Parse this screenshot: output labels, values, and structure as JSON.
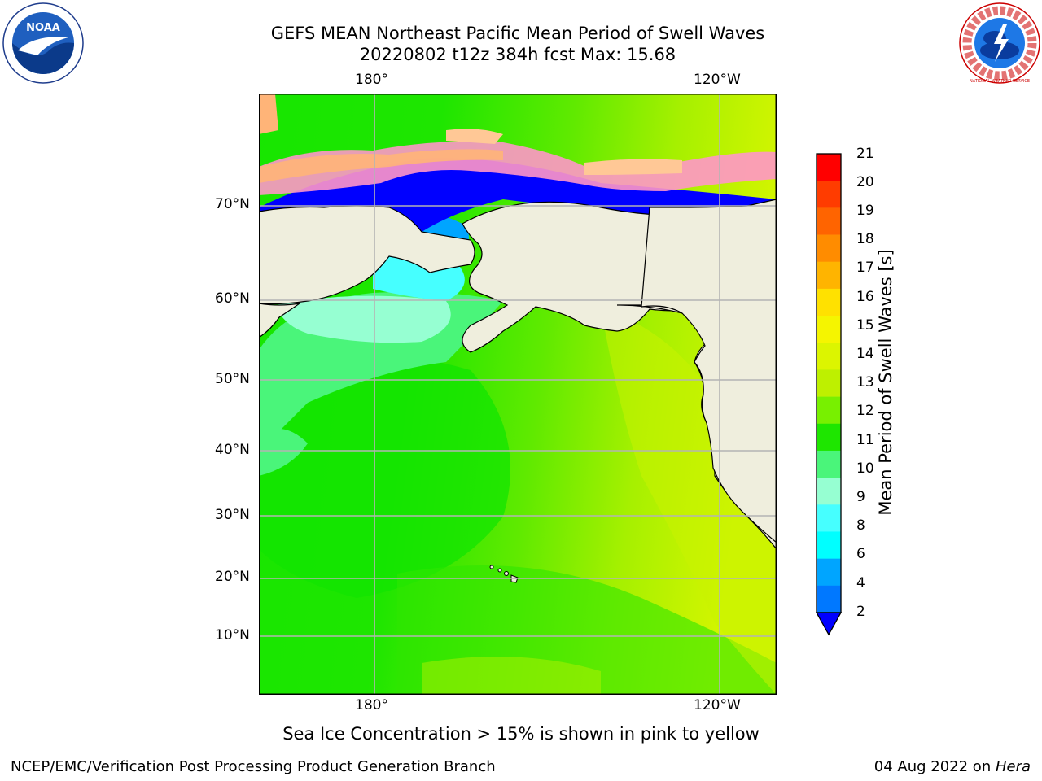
{
  "header": {
    "title_line1": "GEFS MEAN Northeast Pacific Mean Period of Swell Waves",
    "title_line2": "20220802 t12z 384h fcst   Max: 15.68"
  },
  "logos": {
    "noaa_text": "NOAA",
    "nws_text": "NATIONAL WEATHER SERVICE"
  },
  "map": {
    "lon_labels_top": [
      "180°",
      "120°W"
    ],
    "lon_labels_bottom": [
      "180°",
      "120°W"
    ],
    "lat_labels": [
      "70°N",
      "60°N",
      "50°N",
      "40°N",
      "30°N",
      "20°N",
      "10°N"
    ],
    "colors": {
      "land": "#efeedd",
      "ocean_bg": "#22e600"
    }
  },
  "colorbar": {
    "label": "Mean Period of Swell Waves [s]",
    "ticks": [
      "21",
      "20",
      "19",
      "18",
      "17",
      "16",
      "15",
      "14",
      "13",
      "12",
      "11",
      "10",
      "9",
      "8",
      "6",
      "4",
      "2"
    ],
    "colors": [
      "#ff0000",
      "#ff3c00",
      "#ff6400",
      "#ff8c00",
      "#ffb400",
      "#ffe100",
      "#f5f500",
      "#dcf500",
      "#bef000",
      "#78f000",
      "#1ee600",
      "#4af57a",
      "#96ffd2",
      "#46ffff",
      "#00ffff",
      "#00a5ff",
      "#0078ff"
    ],
    "under_color": "#0000ff"
  },
  "notes": {
    "sea_ice": "Sea Ice Concentration > 15% is shown in pink to yellow"
  },
  "footer": {
    "left": "NCEP/EMC/Verification Post Processing Product Generation Branch",
    "date": "04 Aug 2022 on ",
    "machine": "Hera"
  }
}
